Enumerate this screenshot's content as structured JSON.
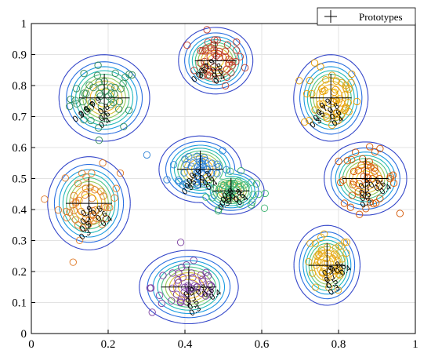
{
  "chart_data": {
    "type": "scatter",
    "title": "",
    "xlabel": "",
    "ylabel": "",
    "xlim": [
      0,
      1
    ],
    "ylim": [
      0,
      1
    ],
    "x_ticks": [
      "0",
      "0.2",
      "0.4",
      "0.6",
      "0.8",
      "1"
    ],
    "y_ticks": [
      "0",
      "0.1",
      "0.2",
      "0.3",
      "0.4",
      "0.5",
      "0.6",
      "0.7",
      "0.8",
      "0.9",
      "1"
    ],
    "grid": true,
    "legend": {
      "position": "top-right",
      "entries": [
        "Prototypes"
      ]
    },
    "contour_levels": [
      0.1,
      0.2,
      0.3,
      0.4,
      0.5,
      0.6,
      0.7,
      0.8,
      0.9
    ],
    "contour_label_values": [
      "0.3",
      "0.4",
      "0.5",
      "0.6",
      "0.7",
      "0.8",
      "0.9"
    ],
    "prototypes": [
      {
        "x": 0.19,
        "y": 0.76,
        "sx": 0.055,
        "sy": 0.065,
        "color": "#2e8b57"
      },
      {
        "x": 0.48,
        "y": 0.88,
        "sx": 0.045,
        "sy": 0.05,
        "color": "#c0392b"
      },
      {
        "x": 0.78,
        "y": 0.76,
        "sx": 0.045,
        "sy": 0.065,
        "color": "#e69b00"
      },
      {
        "x": 0.44,
        "y": 0.53,
        "sx": 0.05,
        "sy": 0.05,
        "color": "#2a7fd4"
      },
      {
        "x": 0.52,
        "y": 0.46,
        "sx": 0.04,
        "sy": 0.035,
        "color": "#3cb371"
      },
      {
        "x": 0.15,
        "y": 0.42,
        "sx": 0.05,
        "sy": 0.07,
        "color": "#e07b28"
      },
      {
        "x": 0.87,
        "y": 0.5,
        "sx": 0.05,
        "sy": 0.055,
        "color": "#d35400"
      },
      {
        "x": 0.41,
        "y": 0.15,
        "sx": 0.06,
        "sy": 0.055,
        "color": "#7b3fa0"
      },
      {
        "x": 0.77,
        "y": 0.22,
        "sx": 0.04,
        "sy": 0.06,
        "color": "#e6a817"
      }
    ],
    "palette": [
      "#3b1e8e",
      "#3446c9",
      "#2a6fe0",
      "#1a9be0",
      "#21b9b9",
      "#4cc48a",
      "#93c95a",
      "#d4c23a",
      "#f2b52a",
      "#f7d21c"
    ]
  }
}
